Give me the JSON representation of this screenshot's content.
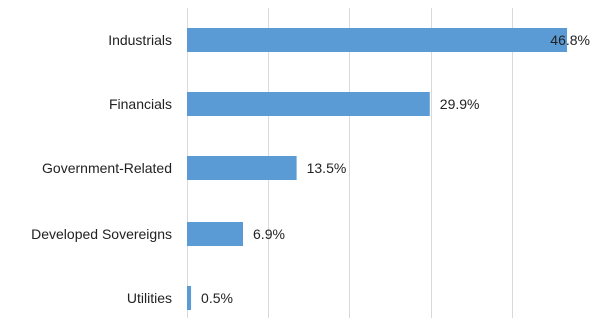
{
  "chart_data": {
    "type": "bar",
    "orientation": "horizontal",
    "categories": [
      "Industrials",
      "Financials",
      "Government-Related",
      "Developed Sovereigns",
      "Utilities"
    ],
    "values": [
      46.8,
      29.9,
      13.5,
      6.9,
      0.5
    ],
    "value_labels": [
      "46.8%",
      "29.9%",
      "13.5%",
      "6.9%",
      "0.5%"
    ],
    "unit": "%",
    "xlim": [
      0,
      50
    ],
    "gridlines": [
      0,
      10,
      20,
      30,
      40,
      50
    ],
    "grid": true,
    "bar_color": "#5b9bd5",
    "title": "",
    "xlabel": "",
    "ylabel": ""
  }
}
